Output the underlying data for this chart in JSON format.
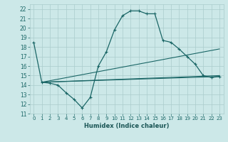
{
  "xlabel": "Humidex (Indice chaleur)",
  "ylabel": "",
  "bg_color": "#cce8e8",
  "grid_color": "#aacccc",
  "line_color": "#1a6666",
  "xlim": [
    -0.5,
    23.5
  ],
  "ylim": [
    11,
    22.5
  ],
  "yticks": [
    11,
    12,
    13,
    14,
    15,
    16,
    17,
    18,
    19,
    20,
    21,
    22
  ],
  "xticks": [
    0,
    1,
    2,
    3,
    4,
    5,
    6,
    7,
    8,
    9,
    10,
    11,
    12,
    13,
    14,
    15,
    16,
    17,
    18,
    19,
    20,
    21,
    22,
    23
  ],
  "xtick_labels": [
    "0",
    "1",
    "2",
    "3",
    "4",
    "5",
    "6",
    "7",
    "8",
    "9",
    "10",
    "11",
    "12",
    "13",
    "14",
    "15",
    "16",
    "17",
    "18",
    "19",
    "20",
    "21",
    "22",
    "23"
  ],
  "series": [
    {
      "x": [
        0,
        1,
        2,
        3,
        4,
        5,
        6,
        7,
        8,
        9,
        10,
        11,
        12,
        13,
        14,
        15,
        16,
        17,
        18,
        19,
        20,
        21,
        22,
        23
      ],
      "y": [
        18.5,
        14.3,
        14.2,
        14.0,
        13.2,
        12.5,
        11.6,
        12.7,
        16.0,
        17.5,
        19.8,
        21.3,
        21.8,
        21.8,
        21.5,
        21.5,
        18.7,
        18.5,
        17.8,
        17.0,
        16.2,
        15.0,
        14.8,
        14.9
      ]
    },
    {
      "x": [
        1,
        23
      ],
      "y": [
        14.3,
        17.8
      ]
    },
    {
      "x": [
        1,
        23
      ],
      "y": [
        14.3,
        15.0
      ]
    },
    {
      "x": [
        1,
        23
      ],
      "y": [
        14.3,
        14.9
      ]
    }
  ]
}
